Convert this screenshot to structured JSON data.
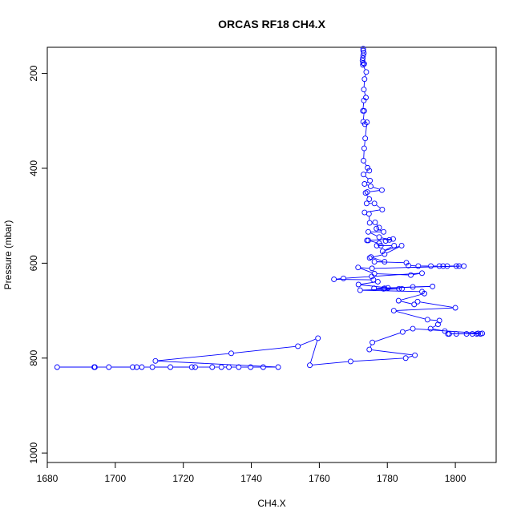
{
  "chart_data": {
    "type": "line",
    "title": "ORCAS RF18 CH4.X",
    "xlabel": "CH4.X",
    "ylabel": "Pressure (mbar)",
    "xlim": [
      1680,
      1812
    ],
    "ylim": [
      1020,
      145
    ],
    "y_reversed": true,
    "x_ticks": [
      1680,
      1700,
      1720,
      1740,
      1760,
      1780,
      1800
    ],
    "y_ticks": [
      200,
      400,
      600,
      800,
      1000
    ],
    "grid": false,
    "legend": "none",
    "marker": "open-circle",
    "color": "#0000ff",
    "series": [
      {
        "points": [
          [
            1772.9,
            148
          ],
          [
            1772.9,
            152
          ],
          [
            1773.1,
            157
          ],
          [
            1772.9,
            162
          ],
          [
            1772.8,
            168
          ],
          [
            1772.7,
            173
          ],
          [
            1772.9,
            178
          ],
          [
            1773.2,
            180
          ],
          [
            1772.8,
            182
          ],
          [
            1773.8,
            197
          ],
          [
            1773.3,
            212
          ],
          [
            1773.1,
            234
          ],
          [
            1773.7,
            251
          ],
          [
            1773.1,
            257
          ],
          [
            1772.8,
            279
          ],
          [
            1773.2,
            279
          ],
          [
            1772.9,
            302
          ],
          [
            1773.4,
            307
          ],
          [
            1774.0,
            303
          ],
          [
            1773.5,
            337
          ],
          [
            1773.2,
            358
          ],
          [
            1773.0,
            384
          ],
          [
            1774.2,
            399
          ],
          [
            1774.7,
            405
          ],
          [
            1773.0,
            413
          ],
          [
            1774.9,
            426
          ],
          [
            1773.3,
            433
          ],
          [
            1775.1,
            438
          ],
          [
            1778.4,
            446
          ],
          [
            1774.1,
            450
          ],
          [
            1773.6,
            452
          ],
          [
            1774.7,
            465
          ],
          [
            1773.9,
            474
          ],
          [
            1776.2,
            474
          ],
          [
            1778.5,
            487
          ],
          [
            1773.3,
            493
          ],
          [
            1774.6,
            496
          ],
          [
            1774.8,
            515
          ],
          [
            1776.4,
            514
          ],
          [
            1777.6,
            525
          ],
          [
            1776.8,
            527
          ],
          [
            1778.9,
            534
          ],
          [
            1774.4,
            534
          ],
          [
            1777.6,
            545
          ],
          [
            1780.6,
            551
          ],
          [
            1779.5,
            553
          ],
          [
            1781.7,
            549
          ],
          [
            1774.0,
            552
          ],
          [
            1774.4,
            552
          ],
          [
            1777.6,
            558
          ],
          [
            1778.1,
            563
          ],
          [
            1776.9,
            563
          ],
          [
            1782.0,
            563
          ],
          [
            1778.6,
            575
          ],
          [
            1784.2,
            563
          ],
          [
            1779.2,
            581
          ],
          [
            1774.8,
            589
          ],
          [
            1775.2,
            587
          ],
          [
            1779.2,
            597
          ],
          [
            1776.2,
            597
          ],
          [
            1785.6,
            599
          ],
          [
            1786.2,
            605
          ],
          [
            1789.1,
            606
          ],
          [
            1792.8,
            606
          ],
          [
            1795.3,
            606
          ],
          [
            1796.4,
            606
          ],
          [
            1797.6,
            606
          ],
          [
            1800.3,
            606
          ],
          [
            1801.1,
            606
          ],
          [
            1802.5,
            606
          ],
          [
            1775.5,
            611
          ],
          [
            1771.4,
            609
          ],
          [
            1776.2,
            622
          ],
          [
            1786.9,
            625
          ],
          [
            1790.2,
            621
          ],
          [
            1775.4,
            628
          ],
          [
            1767.1,
            632
          ],
          [
            1764.3,
            634
          ],
          [
            1775.9,
            635
          ],
          [
            1777.2,
            639
          ],
          [
            1771.5,
            645
          ],
          [
            1780.2,
            652
          ],
          [
            1779.2,
            653
          ],
          [
            1787.5,
            650
          ],
          [
            1793.3,
            649
          ],
          [
            1776.1,
            653
          ],
          [
            1778.9,
            654
          ],
          [
            1783.4,
            654
          ],
          [
            1784.3,
            654
          ],
          [
            1772.0,
            657
          ],
          [
            1790.2,
            660
          ],
          [
            1790.9,
            664
          ],
          [
            1783.3,
            679
          ],
          [
            1787.9,
            687
          ],
          [
            1788.9,
            681
          ],
          [
            1800.0,
            694
          ],
          [
            1781.9,
            700
          ],
          [
            1791.8,
            719
          ],
          [
            1795.3,
            721
          ],
          [
            1794.9,
            729
          ],
          [
            1792.7,
            738
          ],
          [
            1796.9,
            743
          ],
          [
            1798.2,
            749
          ],
          [
            1806.3,
            749
          ],
          [
            1807.4,
            749
          ],
          [
            1800.3,
            749
          ],
          [
            1803.3,
            749
          ],
          [
            1797.8,
            749
          ],
          [
            1805.0,
            749
          ],
          [
            1806.7,
            748
          ],
          [
            1807.9,
            748
          ],
          [
            1787.5,
            738
          ],
          [
            1784.5,
            745
          ],
          [
            1775.6,
            767
          ],
          [
            1774.7,
            782
          ],
          [
            1788.1,
            794
          ],
          [
            1785.4,
            800
          ],
          [
            1769.2,
            807
          ],
          [
            1757.2,
            815
          ],
          [
            1759.6,
            758
          ],
          [
            1753.7,
            775
          ],
          [
            1734.1,
            790
          ],
          [
            1711.8,
            806
          ],
          [
            1747.9,
            819
          ],
          [
            1743.5,
            819
          ],
          [
            1739.8,
            819
          ],
          [
            1736.3,
            819
          ],
          [
            1733.4,
            819
          ],
          [
            1731.2,
            819
          ],
          [
            1728.5,
            819
          ],
          [
            1723.5,
            819
          ],
          [
            1722.5,
            819
          ],
          [
            1716.2,
            819
          ],
          [
            1710.9,
            819
          ],
          [
            1707.8,
            819
          ],
          [
            1706.3,
            819
          ],
          [
            1705.1,
            819
          ],
          [
            1698.1,
            819
          ],
          [
            1694.0,
            819
          ],
          [
            1693.8,
            819
          ],
          [
            1682.9,
            819
          ]
        ]
      }
    ]
  }
}
